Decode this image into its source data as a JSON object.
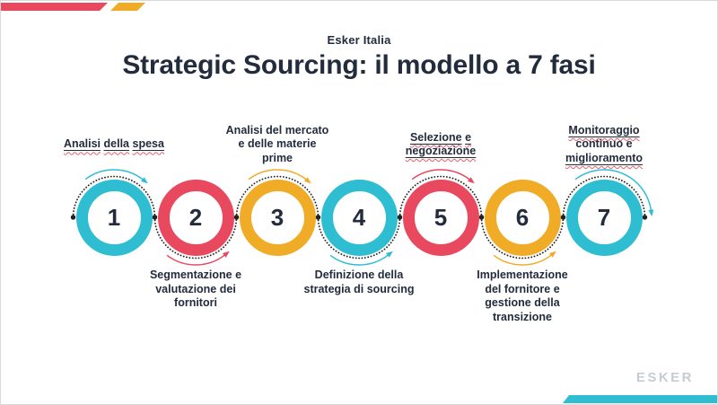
{
  "slide": {
    "eyebrow": "Esker Italia",
    "title": "Strategic Sourcing: il modello a 7 fasi",
    "logo_text": "ESKER"
  },
  "colors": {
    "teal": "#2fbdd2",
    "red": "#e8495f",
    "yellow": "#f0ab27",
    "navy": "#222c3d",
    "arc_black": "#222222",
    "wavy_red": "#e4606a",
    "logo_gray": "#c7cbd3"
  },
  "phases": [
    {
      "number": "1",
      "color": "teal",
      "label_position": "top",
      "lines": [
        "Analisi della spesa"
      ],
      "flagged_words": [
        "Analisi",
        "della",
        "spesa"
      ]
    },
    {
      "number": "2",
      "color": "red",
      "label_position": "bottom",
      "lines": [
        "Segmentazione e",
        "valutazione dei",
        "fornitori"
      ],
      "flagged_words": []
    },
    {
      "number": "3",
      "color": "yellow",
      "label_position": "top",
      "lines": [
        "Analisi del mercato",
        "e delle materie",
        "prime"
      ],
      "flagged_words": []
    },
    {
      "number": "4",
      "color": "teal",
      "label_position": "bottom",
      "lines": [
        "Definizione della",
        "strategia di sourcing"
      ],
      "flagged_words": []
    },
    {
      "number": "5",
      "color": "red",
      "label_position": "top",
      "lines": [
        "Selezione e",
        "negoziazione"
      ],
      "flagged_words": [
        "Selezione",
        "e",
        "negoziazione"
      ]
    },
    {
      "number": "6",
      "color": "yellow",
      "label_position": "bottom",
      "lines": [
        "Implementazione",
        "del fornitore e",
        "gestione della",
        "transizione"
      ],
      "flagged_words": []
    },
    {
      "number": "7",
      "color": "teal",
      "label_position": "top",
      "lines": [
        "Monitoraggio",
        "continuo e",
        "miglioramento"
      ],
      "flagged_words": [
        "Monitoraggio",
        "miglioramento"
      ]
    }
  ]
}
